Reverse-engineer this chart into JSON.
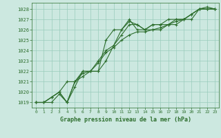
{
  "background_color": "#cce8e0",
  "grid_color": "#99ccbb",
  "line_color": "#2d6e2d",
  "marker_color": "#2d6e2d",
  "xlabel": "Graphe pression niveau de la mer (hPa)",
  "ylim": [
    1018.5,
    1028.6
  ],
  "xlim": [
    -0.5,
    23.5
  ],
  "yticks": [
    1019,
    1020,
    1021,
    1022,
    1023,
    1024,
    1025,
    1026,
    1027,
    1028
  ],
  "xticks": [
    0,
    1,
    2,
    3,
    4,
    5,
    6,
    7,
    8,
    9,
    10,
    11,
    12,
    13,
    14,
    15,
    16,
    17,
    18,
    19,
    20,
    21,
    22,
    23
  ],
  "series": [
    [
      1019.0,
      1019.0,
      1019.0,
      1019.8,
      1019.0,
      1021.0,
      1021.8,
      1022.0,
      1022.0,
      1025.0,
      1026.0,
      1026.0,
      1027.0,
      1026.0,
      1026.0,
      1026.0,
      1026.0,
      1026.5,
      1026.5,
      1027.0,
      1027.0,
      1028.0,
      1028.0,
      1028.0
    ],
    [
      1019.0,
      1019.0,
      1019.5,
      1020.0,
      1021.0,
      1021.0,
      1021.5,
      1022.0,
      1022.8,
      1023.8,
      1024.3,
      1025.0,
      1025.5,
      1025.8,
      1025.8,
      1026.0,
      1026.2,
      1026.5,
      1026.8,
      1027.0,
      1027.5,
      1028.0,
      1028.0,
      1028.0
    ],
    [
      1019.0,
      1019.0,
      1019.5,
      1020.0,
      1019.0,
      1020.5,
      1022.0,
      1022.0,
      1022.0,
      1023.0,
      1024.5,
      1025.5,
      1026.5,
      1026.5,
      1026.0,
      1026.5,
      1026.5,
      1026.5,
      1027.0,
      1027.0,
      1027.5,
      1028.0,
      1028.0,
      1028.0
    ],
    [
      1019.0,
      1019.0,
      1019.5,
      1020.0,
      1019.0,
      1021.0,
      1022.0,
      1022.0,
      1023.0,
      1024.0,
      1024.5,
      1026.0,
      1026.8,
      1026.5,
      1026.0,
      1026.5,
      1026.5,
      1027.0,
      1027.0,
      1027.0,
      1027.5,
      1028.0,
      1028.2,
      1028.0
    ]
  ]
}
